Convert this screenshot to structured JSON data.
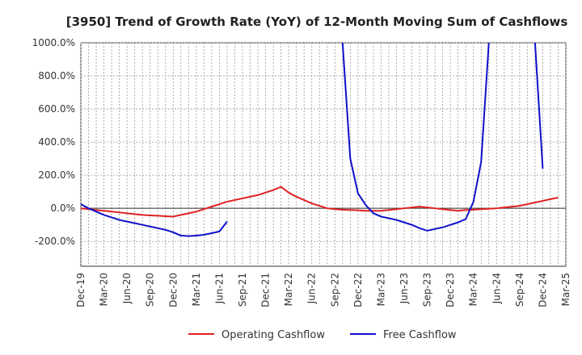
{
  "chart_data": {
    "type": "line",
    "title": "[3950]  Trend of Growth Rate (YoY) of 12-Month Moving Sum of Cashflows",
    "xlabel": "",
    "ylabel": "",
    "ylim": [
      -350,
      1000
    ],
    "y_ticks": [
      1000,
      800,
      600,
      400,
      200,
      0,
      -200
    ],
    "y_tick_labels": [
      "1000.0%",
      "800.0%",
      "600.0%",
      "400.0%",
      "200.0%",
      "0.0%",
      "-200.0%"
    ],
    "x_tick_labels": [
      "Dec-19",
      "Mar-20",
      "Jun-20",
      "Sep-20",
      "Dec-20",
      "Mar-21",
      "Jun-21",
      "Sep-21",
      "Dec-21",
      "Mar-22",
      "Jun-22",
      "Sep-22",
      "Dec-22",
      "Mar-23",
      "Jun-23",
      "Sep-23",
      "Dec-23",
      "Mar-24",
      "Jun-24",
      "Sep-24",
      "Dec-24",
      "Mar-25"
    ],
    "x_months": [
      "2019-12",
      "2020-01",
      "2020-02",
      "2020-03",
      "2020-04",
      "2020-05",
      "2020-06",
      "2020-07",
      "2020-08",
      "2020-09",
      "2020-10",
      "2020-11",
      "2020-12",
      "2021-01",
      "2021-02",
      "2021-03",
      "2021-04",
      "2021-05",
      "2021-06",
      "2021-07",
      "2021-08",
      "2021-09",
      "2021-10",
      "2021-11",
      "2021-12",
      "2022-01",
      "2022-02",
      "2022-03",
      "2022-04",
      "2022-05",
      "2022-06",
      "2022-07",
      "2022-08",
      "2022-09",
      "2022-10",
      "2022-11",
      "2022-12",
      "2023-01",
      "2023-02",
      "2023-03",
      "2023-04",
      "2023-05",
      "2023-06",
      "2023-07",
      "2023-08",
      "2023-09",
      "2023-10",
      "2023-11",
      "2023-12",
      "2024-01",
      "2024-02",
      "2024-03",
      "2024-04",
      "2024-05",
      "2024-06",
      "2024-07",
      "2024-08",
      "2024-09",
      "2024-10",
      "2024-11",
      "2024-12",
      "2025-01",
      "2025-02",
      "2025-03"
    ],
    "grid": true,
    "legend_position": "bottom",
    "series": [
      {
        "name": "Operating Cashflow",
        "color": "#e02020",
        "values": [
          0,
          -5,
          -10,
          -15,
          -20,
          -25,
          -30,
          -35,
          -40,
          -43,
          -45,
          -48,
          -50,
          -40,
          -30,
          -20,
          -5,
          10,
          25,
          40,
          50,
          60,
          70,
          80,
          95,
          110,
          130,
          95,
          70,
          50,
          30,
          15,
          0,
          -5,
          -8,
          -10,
          -12,
          -15,
          -15,
          -15,
          -10,
          -5,
          0,
          5,
          10,
          5,
          0,
          -5,
          -10,
          -15,
          -10,
          -8,
          -5,
          -3,
          0,
          5,
          10,
          15,
          25,
          35,
          45,
          55,
          65,
          null
        ]
      },
      {
        "name": "Free Cashflow",
        "color": "#1010cc",
        "values": [
          25,
          0,
          -20,
          -40,
          -55,
          -70,
          -80,
          -90,
          -100,
          -110,
          -120,
          -130,
          -145,
          -165,
          -168,
          -165,
          -160,
          -150,
          -140,
          -80,
          null,
          null,
          null,
          null,
          null,
          null,
          null,
          null,
          null,
          null,
          null,
          null,
          null,
          null,
          null,
          null,
          null,
          null,
          null,
          null,
          null,
          null,
          null,
          null,
          null,
          null,
          null,
          null,
          null,
          null,
          null,
          null,
          null,
          null,
          null,
          null,
          null,
          null,
          null,
          null,
          null,
          null,
          null,
          null
        ]
      },
      {
        "name": "Free Cashflow",
        "color": "#1010cc",
        "values": [
          null,
          null,
          null,
          null,
          null,
          null,
          null,
          null,
          null,
          null,
          null,
          null,
          null,
          null,
          null,
          null,
          null,
          null,
          null,
          null,
          null,
          null,
          null,
          null,
          null,
          null,
          null,
          null,
          null,
          null,
          null,
          null,
          null,
          null,
          1000,
          300,
          90,
          20,
          -30,
          -50,
          -60,
          -70,
          -85,
          -100,
          -120,
          -135,
          -125,
          -115,
          -100,
          -85,
          -65,
          40,
          280,
          1000,
          null,
          null,
          null,
          null,
          null,
          null,
          null,
          null,
          null,
          null
        ]
      },
      {
        "name": "Free Cashflow",
        "color": "#1010cc",
        "values": [
          null,
          null,
          null,
          null,
          null,
          null,
          null,
          null,
          null,
          null,
          null,
          null,
          null,
          null,
          null,
          null,
          null,
          null,
          null,
          null,
          null,
          null,
          null,
          null,
          null,
          null,
          null,
          null,
          null,
          null,
          null,
          null,
          null,
          null,
          null,
          null,
          null,
          null,
          null,
          null,
          null,
          null,
          null,
          null,
          null,
          null,
          null,
          null,
          null,
          null,
          null,
          null,
          null,
          null,
          null,
          null,
          null,
          null,
          null,
          1000,
          240,
          null,
          null,
          null
        ]
      }
    ]
  }
}
